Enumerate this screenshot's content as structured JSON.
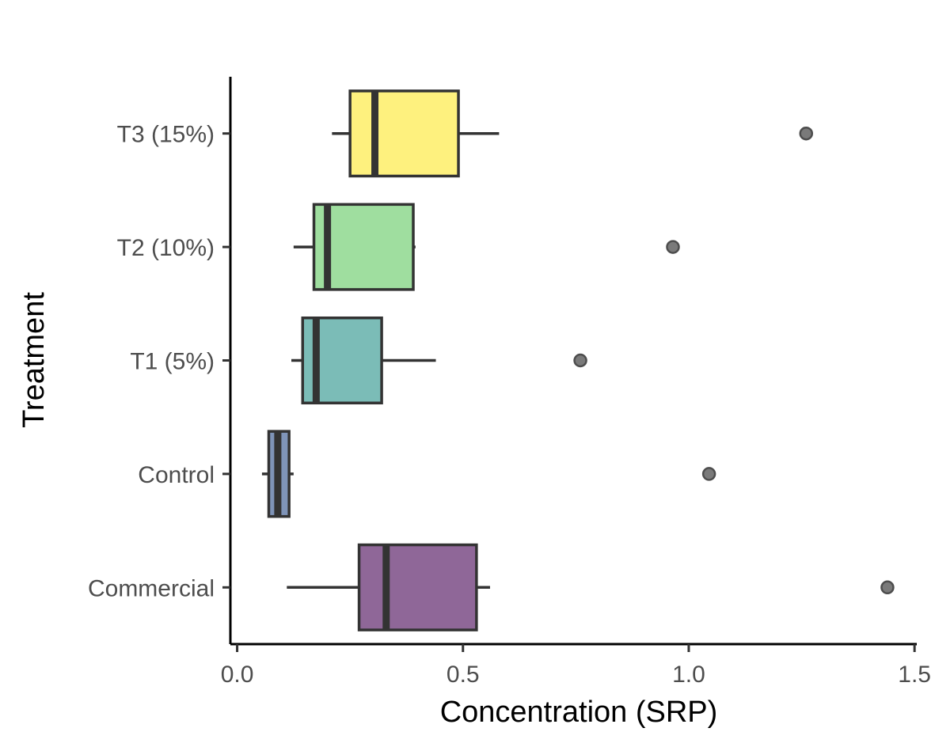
{
  "chart_data": {
    "type": "boxplot",
    "orientation": "horizontal",
    "title": "",
    "xlabel": "Concentration (SRP)",
    "ylabel": "Treatment",
    "xlim": [
      -0.015,
      1.505
    ],
    "x_ticks": [
      0.0,
      0.5,
      1.0,
      1.5
    ],
    "x_tick_labels": [
      "0.0",
      "0.5",
      "1.0",
      "1.5"
    ],
    "grid": false,
    "legend": "none",
    "categories": [
      "Commercial",
      "Control",
      "T1 (5%)",
      "T2 (10%)",
      "T3 (15%)"
    ],
    "series": [
      {
        "category": "Commercial",
        "whisker_low": 0.11,
        "q1": 0.27,
        "median": 0.33,
        "q3": 0.53,
        "whisker_high": 0.56,
        "outliers": [
          1.44
        ],
        "color": "#8F6798"
      },
      {
        "category": "Control",
        "whisker_low": 0.055,
        "q1": 0.07,
        "median": 0.09,
        "q3": 0.115,
        "whisker_high": 0.125,
        "outliers": [
          1.045
        ],
        "color": "#7F94B8"
      },
      {
        "category": "T1 (5%)",
        "whisker_low": 0.12,
        "q1": 0.145,
        "median": 0.175,
        "q3": 0.32,
        "whisker_high": 0.44,
        "outliers": [
          0.76
        ],
        "color": "#7BBCB7"
      },
      {
        "category": "T2 (10%)",
        "whisker_low": 0.125,
        "q1": 0.17,
        "median": 0.2,
        "q3": 0.39,
        "whisker_high": 0.395,
        "outliers": [
          0.965
        ],
        "color": "#9FDE9F"
      },
      {
        "category": "T3 (15%)",
        "whisker_low": 0.21,
        "q1": 0.25,
        "median": 0.305,
        "q3": 0.49,
        "whisker_high": 0.58,
        "outliers": [
          1.26
        ],
        "color": "#FEF17E"
      }
    ],
    "outlier_color": "#7a7a7a"
  }
}
